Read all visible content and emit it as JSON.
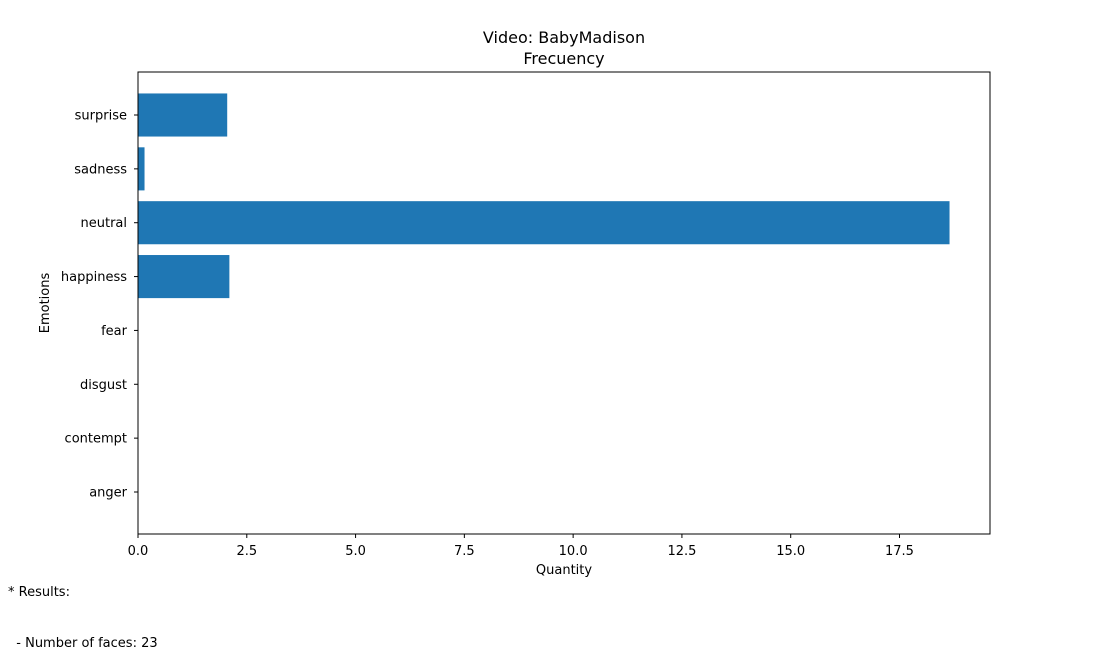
{
  "chart_data": {
    "type": "bar",
    "orientation": "horizontal",
    "title": "Video: BabyMadison",
    "subtitle": "Frecuency",
    "xlabel": "Quantity",
    "ylabel": "Emotions",
    "categories": [
      "anger",
      "contempt",
      "disgust",
      "fear",
      "happiness",
      "neutral",
      "sadness",
      "surprise"
    ],
    "values": [
      0,
      0,
      0,
      0,
      2.1,
      18.65,
      0.15,
      2.05
    ],
    "xlim": [
      0,
      19.58
    ],
    "xticks": [
      0.0,
      2.5,
      5.0,
      7.5,
      10.0,
      12.5,
      15.0,
      17.5
    ],
    "xtick_labels": [
      "0.0",
      "2.5",
      "5.0",
      "7.5",
      "10.0",
      "12.5",
      "15.0",
      "17.5"
    ],
    "grid": false,
    "legend": "none",
    "bar_color": "#1f77b4"
  },
  "footnote": {
    "heading": "* Results:",
    "line": "  - Number of faces: 23"
  }
}
